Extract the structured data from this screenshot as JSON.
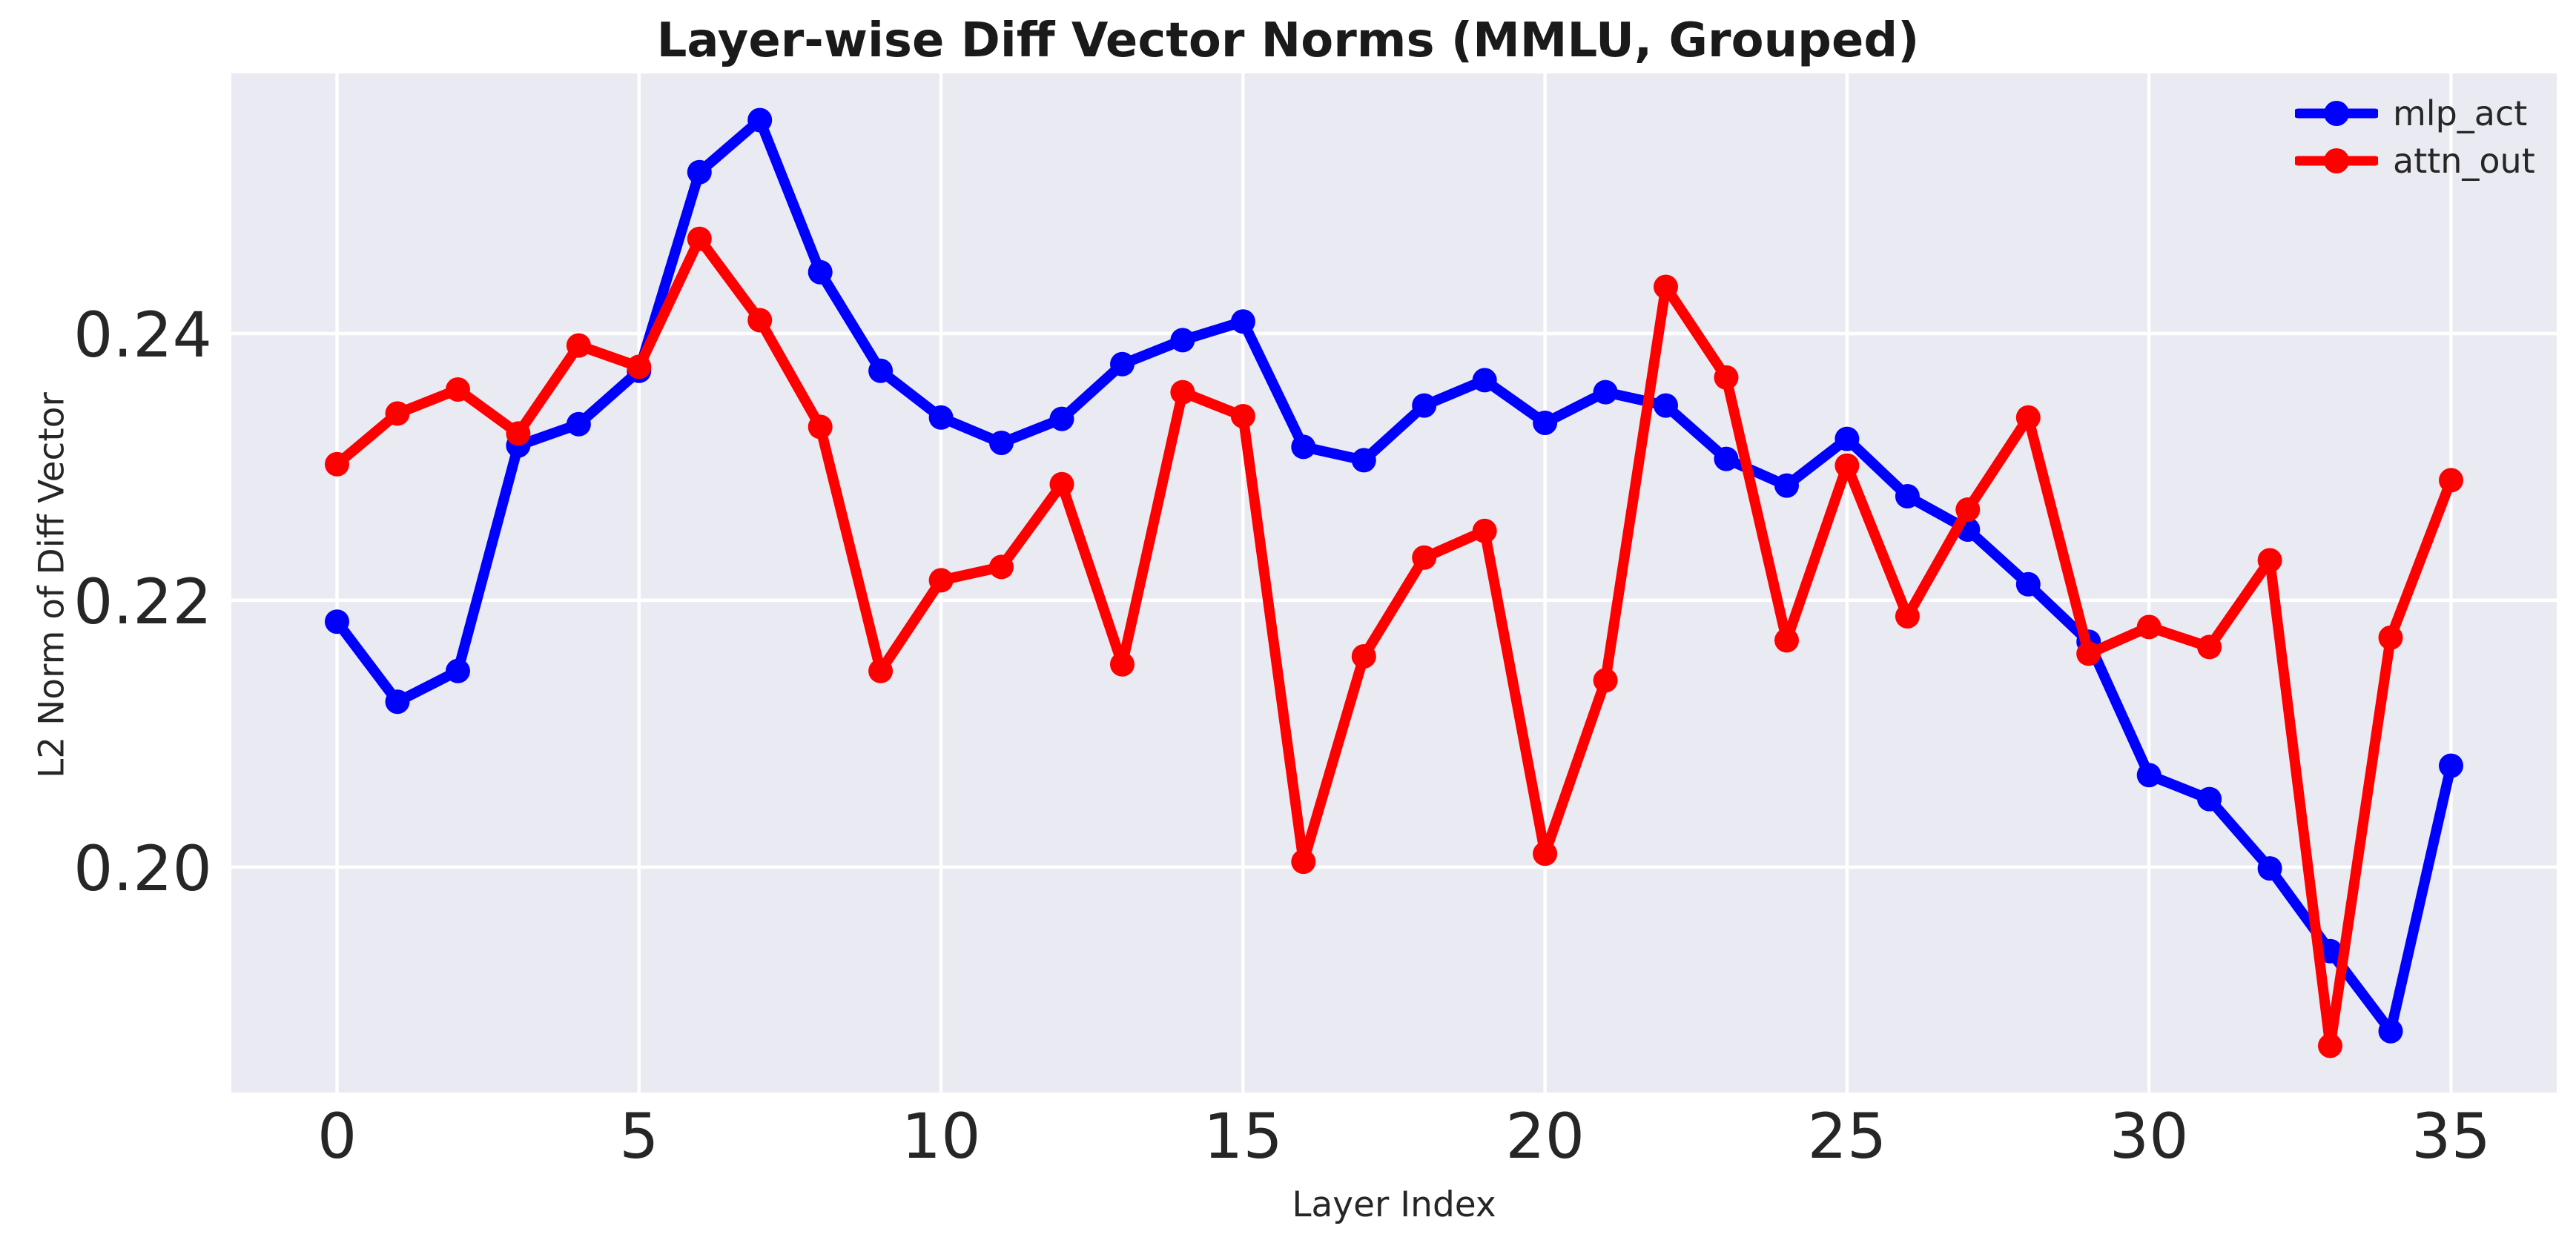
{
  "chart_data": {
    "type": "line",
    "title": "Layer-wise Diff Vector Norms (MMLU, Grouped)",
    "xlabel": "Layer Index",
    "ylabel": "L2 Norm of Diff Vector",
    "x": [
      0,
      1,
      2,
      3,
      4,
      5,
      6,
      7,
      8,
      9,
      10,
      11,
      12,
      13,
      14,
      15,
      16,
      17,
      18,
      19,
      20,
      21,
      22,
      23,
      24,
      25,
      26,
      27,
      28,
      29,
      30,
      31,
      32,
      33,
      34,
      35
    ],
    "series": [
      {
        "name": "mlp_act",
        "color": "#0000ff",
        "values": [
          0.2184,
          0.2124,
          0.2147,
          0.2316,
          0.2332,
          0.2372,
          0.2521,
          0.256,
          0.2446,
          0.2372,
          0.2337,
          0.2318,
          0.2336,
          0.2377,
          0.2395,
          0.2409,
          0.2315,
          0.2305,
          0.2346,
          0.2365,
          0.2333,
          0.2356,
          0.2346,
          0.2306,
          0.2286,
          0.2321,
          0.2278,
          0.2253,
          0.2212,
          0.2169,
          0.2069,
          0.2051,
          0.1999,
          0.1937,
          0.1877,
          0.2076
        ]
      },
      {
        "name": "attn_out",
        "color": "#ff0000",
        "values": [
          0.2302,
          0.234,
          0.2358,
          0.2325,
          0.2391,
          0.2375,
          0.2471,
          0.241,
          0.233,
          0.2147,
          0.2215,
          0.2225,
          0.2287,
          0.2152,
          0.2356,
          0.2338,
          0.2004,
          0.2158,
          0.2232,
          0.2252,
          0.201,
          0.214,
          0.2435,
          0.2367,
          0.217,
          0.2301,
          0.2188,
          0.2268,
          0.2337,
          0.216,
          0.218,
          0.2165,
          0.223,
          0.1866,
          0.2172,
          0.229
        ]
      }
    ],
    "xticks": [
      0,
      5,
      10,
      15,
      20,
      25,
      30,
      35
    ],
    "yticks": [
      0.2,
      0.22,
      0.24
    ],
    "ytick_labels": [
      "0.20",
      "0.22",
      "0.24"
    ],
    "xlim": [
      -1.75,
      36.75
    ],
    "ylim": [
      0.1831,
      0.2595
    ],
    "grid": true,
    "legend_position": "upper right",
    "axes_background": "#eaeaf2",
    "grid_color": "#ffffff",
    "tick_color": "#262626"
  }
}
